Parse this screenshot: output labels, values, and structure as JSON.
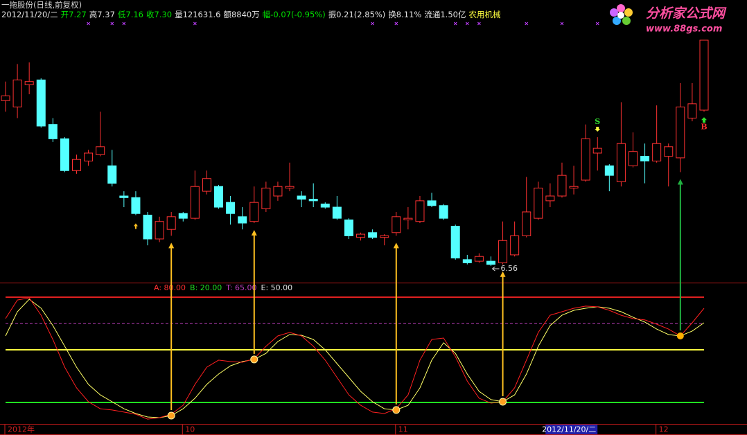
{
  "header": {
    "title": "一拖股份(日线,前复权)",
    "quote": [
      {
        "text": "开7.27",
        "color": "#00e000"
      },
      {
        "text": "高7.37",
        "color": "#e0e0e0"
      },
      {
        "text": "低7.16",
        "color": "#00e000"
      },
      {
        "text": "收7.30",
        "color": "#00e000"
      },
      {
        "text": "量121631.6",
        "color": "#e0e0e0"
      },
      {
        "text": "额8840万",
        "color": "#e0e0e0"
      },
      {
        "text": "幅-0.07(-0.95%)",
        "color": "#00e000"
      },
      {
        "text": "振0.21(2.85%)",
        "color": "#e0e0e0"
      },
      {
        "text": "换8.11%",
        "color": "#e0e0e0"
      },
      {
        "text": "流通1.50亿",
        "color": "#e0e0e0"
      },
      {
        "text": "农用机械",
        "color": "#ffff40"
      }
    ]
  },
  "watermark": {
    "title": "分析家公式网",
    "url": "www.88gs.com"
  },
  "chart_data": [
    {
      "type": "candlestick",
      "categories": [
        "2012年",
        null,
        null,
        null,
        null,
        null,
        null,
        null,
        null,
        null,
        null,
        null,
        null,
        null,
        null,
        "10",
        null,
        null,
        null,
        null,
        null,
        null,
        null,
        null,
        null,
        null,
        null,
        null,
        null,
        null,
        null,
        null,
        null,
        "11",
        null,
        null,
        null,
        null,
        null,
        null,
        null,
        null,
        null,
        null,
        null,
        null,
        null,
        null,
        null,
        null,
        "2012/11/20/二",
        null,
        null,
        null,
        null,
        "12",
        null,
        null,
        null,
        null
      ],
      "open": [
        7.6,
        7.56,
        7.7,
        7.73,
        7.45,
        7.36,
        7.16,
        7.22,
        7.26,
        7.19,
        7.0,
        6.99,
        6.88,
        6.73,
        6.79,
        6.89,
        6.86,
        7.03,
        7.06,
        6.96,
        6.87,
        6.84,
        6.92,
        7.0,
        7.05,
        7.0,
        6.98,
        6.95,
        6.93,
        6.85,
        6.74,
        6.77,
        6.74,
        6.77,
        6.85,
        6.84,
        6.97,
        6.94,
        6.81,
        6.6,
        6.59,
        6.59,
        6.58,
        6.63,
        6.75,
        6.86,
        6.97,
        7.0,
        7.05,
        7.1,
        7.27,
        7.19,
        7.09,
        7.19,
        7.25,
        7.22,
        7.25,
        7.24,
        7.49,
        7.54
      ],
      "high": [
        7.72,
        7.83,
        7.84,
        7.74,
        7.49,
        7.37,
        7.26,
        7.29,
        7.53,
        7.29,
        7.03,
        7.03,
        6.9,
        6.87,
        6.9,
        6.9,
        7.16,
        7.16,
        7.07,
        7.0,
        6.93,
        7.06,
        7.09,
        7.09,
        7.21,
        7.03,
        7.08,
        6.96,
        7.0,
        6.86,
        6.77,
        6.79,
        6.76,
        6.9,
        6.93,
        7.0,
        7.02,
        6.95,
        6.82,
        6.63,
        6.64,
        6.62,
        6.84,
        6.84,
        7.12,
        7.09,
        7.08,
        7.21,
        7.19,
        7.45,
        7.37,
        7.2,
        7.59,
        7.4,
        7.33,
        7.57,
        7.33,
        7.71,
        7.71,
        7.98
      ],
      "low": [
        7.53,
        7.49,
        7.64,
        7.43,
        7.34,
        7.15,
        7.14,
        7.19,
        7.25,
        7.06,
        6.93,
        6.88,
        6.69,
        6.71,
        6.75,
        6.84,
        6.85,
        7.01,
        6.92,
        6.82,
        6.79,
        6.83,
        6.9,
        6.97,
        7.03,
        6.93,
        6.93,
        6.92,
        6.85,
        6.73,
        6.72,
        6.73,
        6.69,
        6.75,
        6.79,
        6.83,
        6.93,
        6.85,
        6.6,
        6.57,
        6.58,
        6.56,
        6.57,
        6.62,
        6.74,
        6.85,
        6.93,
        6.99,
        7.01,
        7.09,
        7.16,
        7.03,
        7.06,
        7.18,
        7.08,
        7.21,
        7.06,
        7.15,
        7.47,
        7.53
      ],
      "close": [
        7.63,
        7.73,
        7.72,
        7.44,
        7.36,
        7.16,
        7.23,
        7.27,
        7.31,
        7.08,
        6.99,
        6.89,
        6.73,
        6.84,
        6.87,
        6.86,
        7.06,
        7.11,
        6.93,
        6.89,
        6.83,
        6.96,
        7.05,
        7.06,
        7.06,
        6.98,
        6.97,
        6.93,
        6.86,
        6.75,
        6.76,
        6.74,
        6.75,
        6.87,
        6.86,
        6.97,
        6.94,
        6.86,
        6.61,
        6.58,
        6.62,
        6.57,
        6.72,
        6.75,
        6.9,
        7.05,
        7.0,
        7.13,
        7.06,
        7.36,
        7.3,
        7.13,
        7.33,
        7.28,
        7.22,
        7.33,
        7.31,
        7.56,
        7.58,
        7.98
      ],
      "up_color": "#ff3232",
      "down_color": "#54ffff",
      "low_annotation": 6.56,
      "sell_label": "S",
      "buy_label": "B"
    },
    {
      "type": "line",
      "series": [
        {
          "color": "#ffff66",
          "values": [
            57.9,
            71.7,
            78.8,
            73.7,
            63.8,
            52.0,
            40.1,
            30.3,
            24.3,
            20.4,
            16.4,
            13.7,
            11.7,
            11.3,
            12.5,
            16.4,
            22.4,
            30.3,
            36.2,
            40.9,
            43.3,
            44.5,
            48.0,
            54.7,
            58.7,
            58.3,
            55.9,
            50.0,
            42.1,
            34.2,
            26.3,
            20.4,
            16.4,
            15.7,
            18.4,
            28.3,
            44.1,
            54.0,
            48.0,
            36.2,
            26.3,
            21.6,
            20.4,
            24.3,
            36.2,
            52.0,
            63.8,
            69.7,
            72.5,
            73.7,
            74.5,
            73.7,
            71.7,
            68.6,
            65.8,
            61.8,
            58.7,
            57.9,
            60.7,
            65.4
          ]
        },
        {
          "color": "#ff2020",
          "values": [
            67.8,
            78.4,
            79.6,
            69.7,
            55.9,
            40.1,
            28.3,
            20.4,
            16.4,
            15.7,
            14.5,
            13.3,
            10.5,
            11.3,
            13.3,
            18.4,
            30.3,
            40.1,
            44.1,
            43.3,
            42.9,
            44.9,
            52.0,
            57.9,
            59.9,
            57.9,
            52.0,
            44.1,
            34.2,
            24.3,
            18.4,
            14.5,
            13.7,
            16.4,
            24.3,
            44.1,
            55.9,
            56.7,
            46.1,
            32.2,
            22.4,
            19.6,
            20.4,
            28.3,
            44.1,
            59.9,
            69.7,
            71.7,
            73.7,
            74.9,
            74.5,
            72.5,
            69.7,
            67.8,
            67.0,
            64.6,
            61.8,
            57.9,
            65.4,
            73.7
          ]
        }
      ],
      "levels": [
        {
          "value": 80,
          "label": "A: 80.00",
          "color": "#e02020",
          "label_color": "#ff3030",
          "dashed": false
        },
        {
          "value": 20,
          "label": "B: 20.00",
          "color": "#20e020",
          "label_color": "#20e020",
          "dashed": false
        },
        {
          "value": 65,
          "label": "T: 65.00",
          "color": "#c040c0",
          "label_color": "#c040c0",
          "dashed": true
        },
        {
          "value": 50,
          "label": "E: 50.00",
          "color": "#ffff40",
          "label_color": "#e0e0e0",
          "dashed": false
        }
      ]
    }
  ]
}
